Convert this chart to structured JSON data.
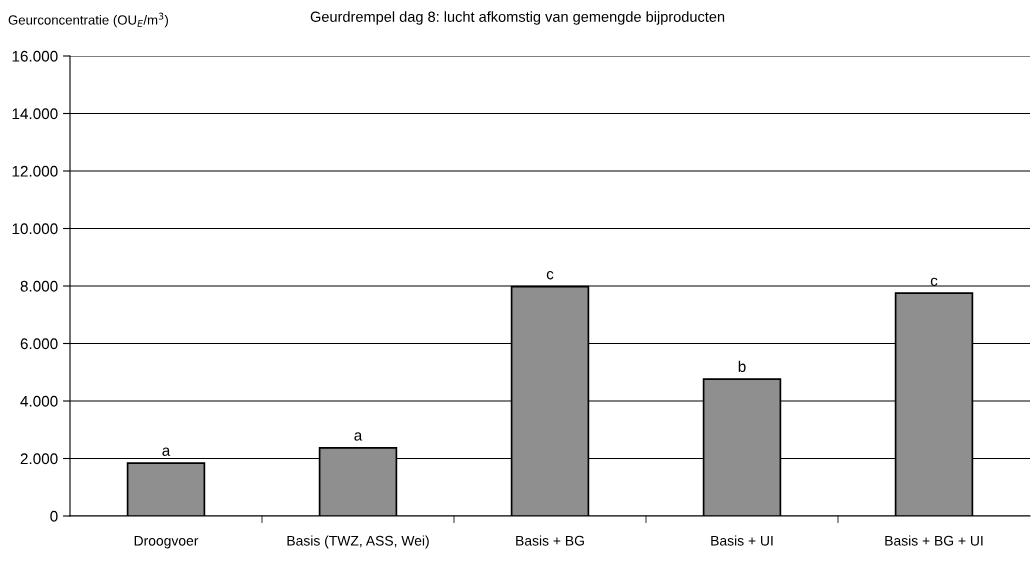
{
  "chart_data": {
    "type": "bar",
    "title": "Geurdrempel dag 8: lucht afkomstig van gemengde bijproducten",
    "ylabel": "Geurconcentratie (OU$_{E}$/m$^{3}$)",
    "categories": [
      "Droogvoer",
      "Basis (TWZ, ASS, Wei)",
      "Basis + BG",
      "Basis + UI",
      "Basis + BG + UI"
    ],
    "values": [
      1840,
      2370,
      7980,
      4760,
      7750
    ],
    "color": "#8f8f8f",
    "ylim": [
      0,
      16000
    ],
    "yticks": [
      0,
      {
        "value": 2000,
        "label": "2.000"
      },
      {
        "value": 4000,
        "label": "4.000"
      },
      {
        "value": 6000,
        "label": "6.000"
      },
      {
        "value": 8000,
        "label": "8.000"
      },
      {
        "value": 10000,
        "label": "10.000"
      },
      {
        "value": 12000,
        "label": "12.000"
      },
      {
        "value": 14000,
        "label": "14.000"
      },
      {
        "value": 16000,
        "label": "16.000"
      }
    ],
    "grid": "y",
    "annotations": [
      {
        "text": "a",
        "x": "Droogvoer",
        "y": 1840
      },
      {
        "text": "a",
        "x": "Basis (TWZ, ASS, Wei)",
        "y": 2370
      },
      {
        "text": "c",
        "x": "Basis + BG",
        "y": 7980
      },
      {
        "text": "b",
        "x": "Basis + UI",
        "y": 4760
      },
      {
        "text": "c",
        "x": "Basis + BG + UI",
        "y": 7750
      }
    ]
  }
}
